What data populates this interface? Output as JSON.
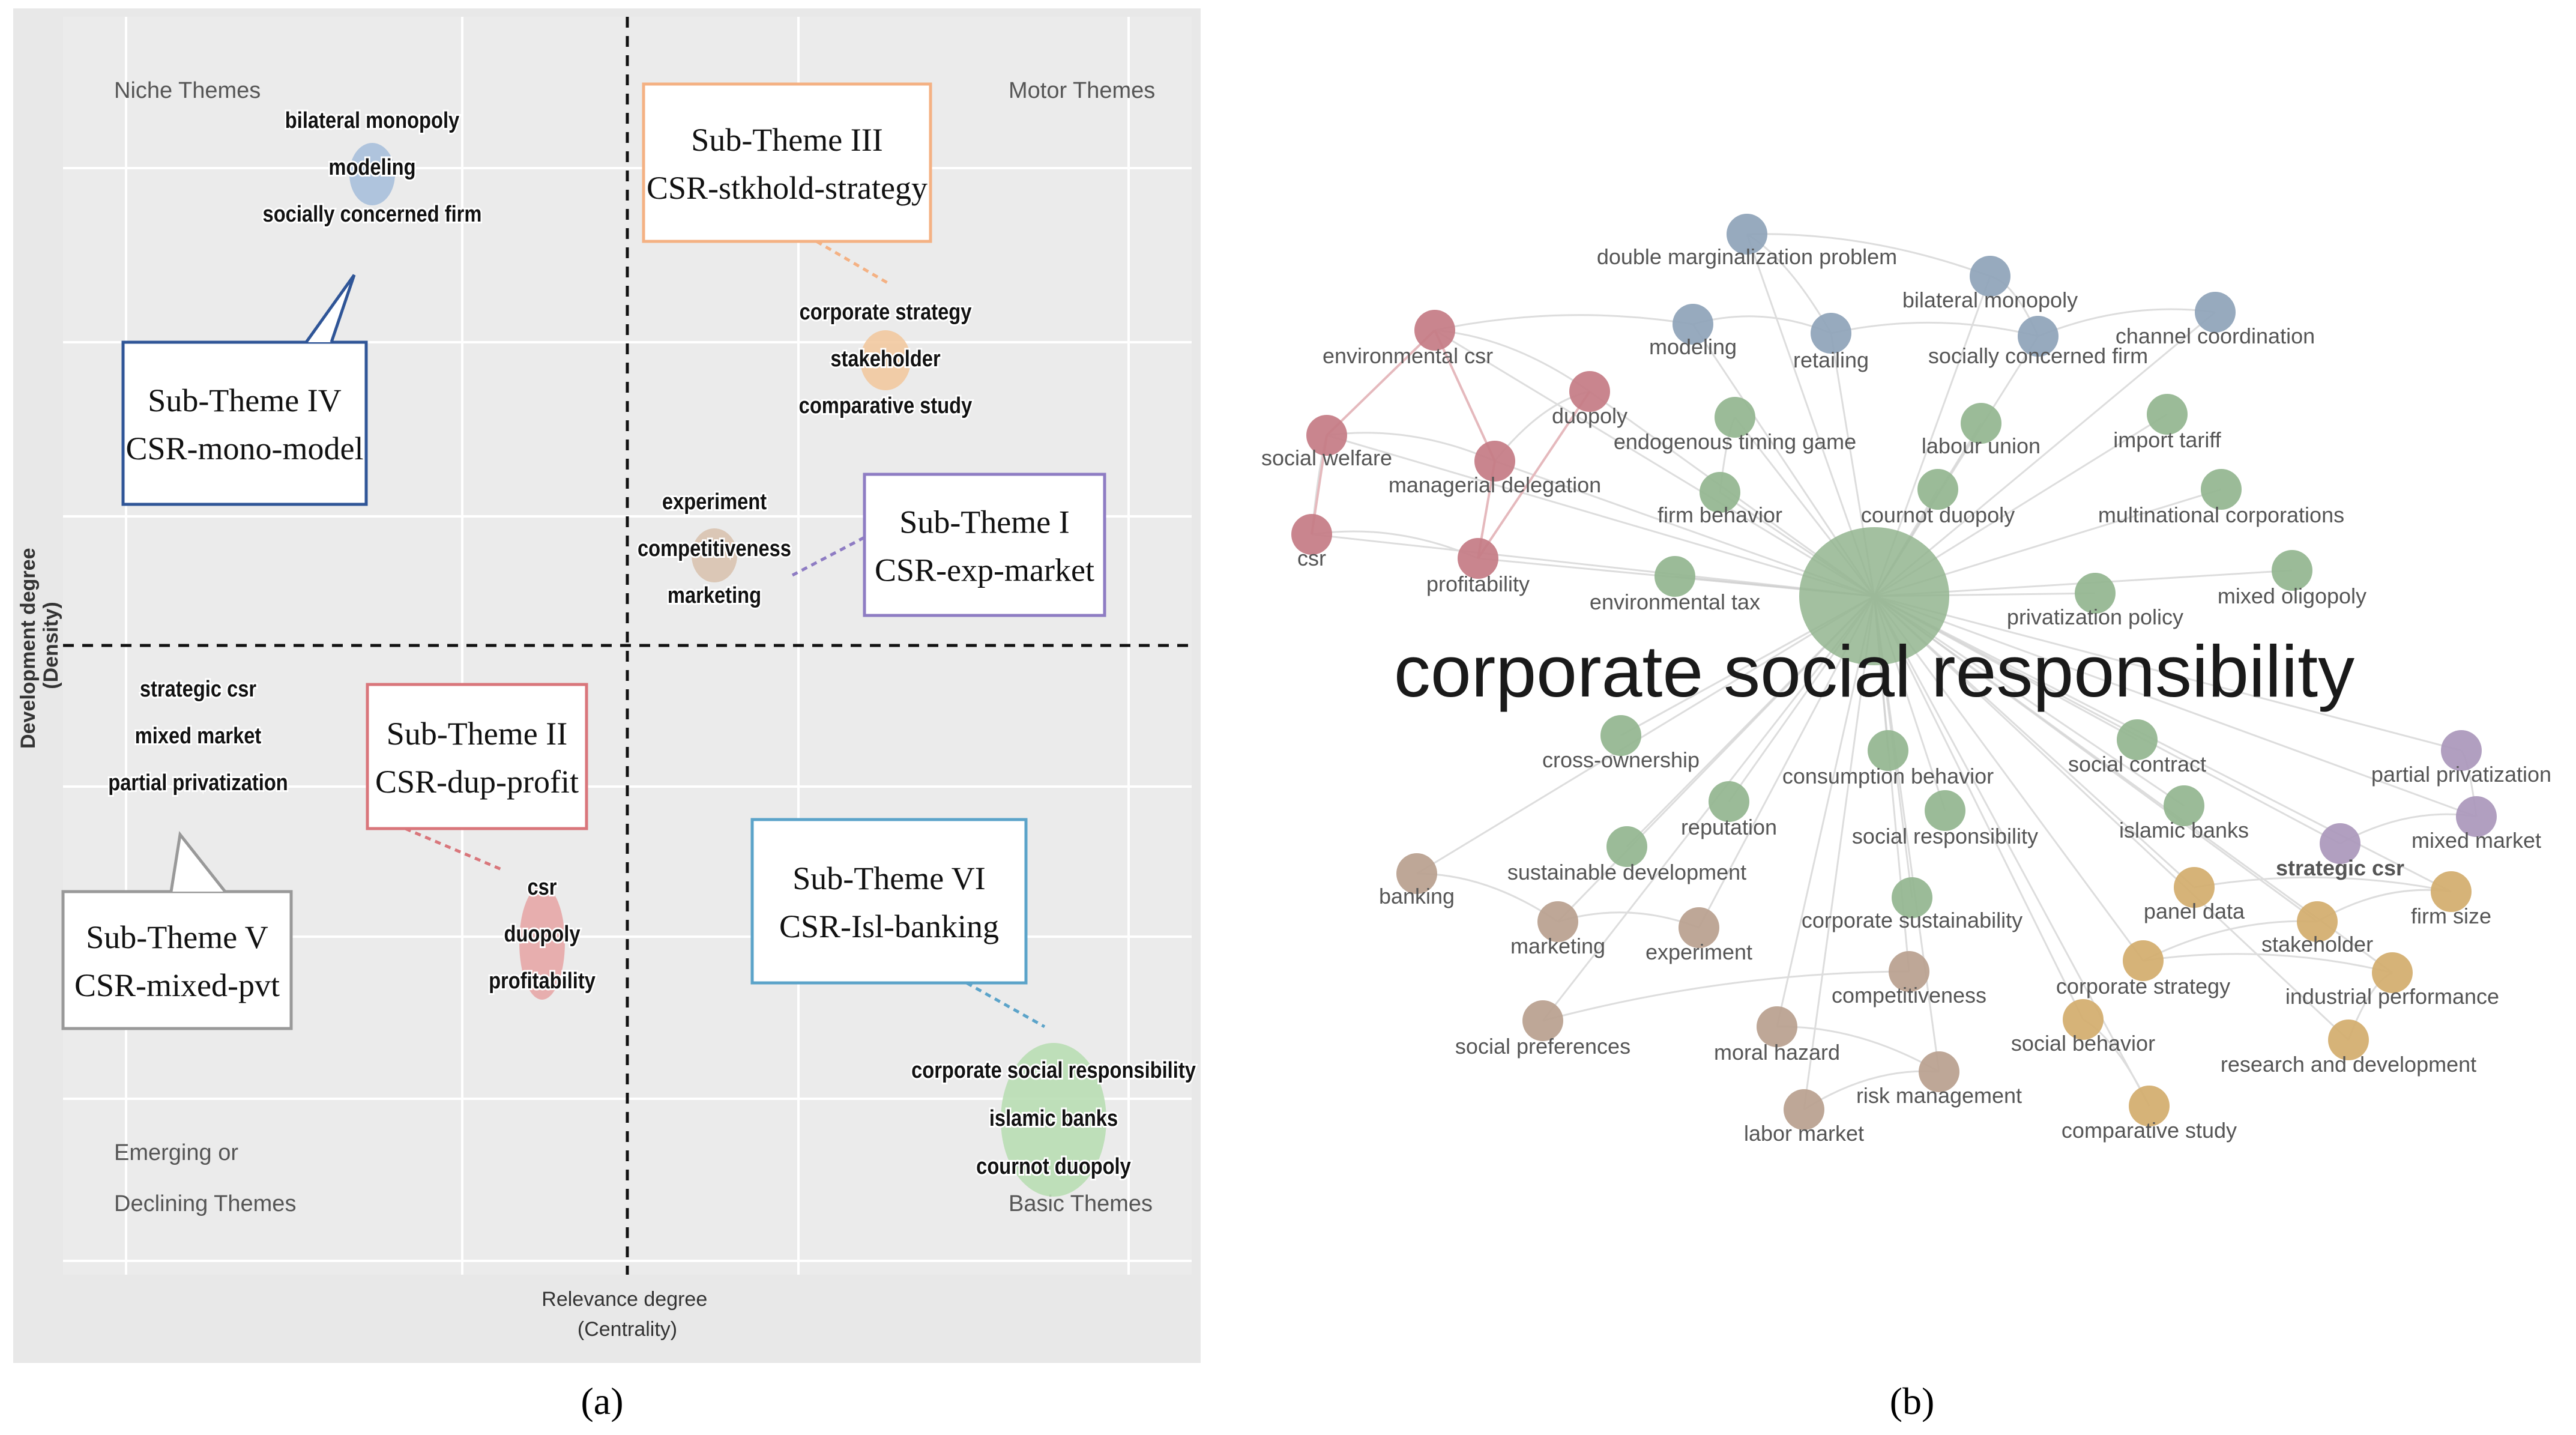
{
  "panel_a": {
    "caption": "(a)",
    "quadrants": {
      "niche": [
        "Niche Themes"
      ],
      "motor": [
        "Motor Themes"
      ],
      "emerging": [
        "Emerging or",
        "Declining Themes"
      ],
      "basic": [
        "Basic Themes"
      ]
    },
    "y_axis_label": [
      "Development degree",
      "(Density)"
    ],
    "x_axis_label": [
      "Relevance degree",
      "(Centrality)"
    ],
    "clusters": [
      {
        "key": "c1",
        "color": "#a9c0dc",
        "words": [
          "bilateral monopoly",
          "modeling",
          "socially concerned firm"
        ]
      },
      {
        "key": "c2",
        "color": "#f2c9a0",
        "words": [
          "corporate strategy",
          "stakeholder",
          "comparative study"
        ]
      },
      {
        "key": "c3",
        "color": "#d9c3b0",
        "words": [
          "experiment",
          "competitiveness",
          "marketing"
        ]
      },
      {
        "key": "c4",
        "color": "#e0e0e0",
        "words": [
          "strategic csr",
          "mixed market",
          "partial privatization"
        ]
      },
      {
        "key": "c5",
        "color": "#e7a7a7",
        "words": [
          "csr",
          "duopoly",
          "profitability"
        ]
      },
      {
        "key": "c6",
        "color": "#b9deb4",
        "words": [
          "corporate social responsibility",
          "islamic banks",
          "cournot duopoly"
        ]
      }
    ],
    "callouts": [
      {
        "key": "t4",
        "lines": [
          "Sub-Theme IV",
          "CSR-mono-model"
        ],
        "color": "#2f5597"
      },
      {
        "key": "t3",
        "lines": [
          "Sub-Theme III",
          "CSR-stkhold-strategy"
        ],
        "color": "#f4b183"
      },
      {
        "key": "t1",
        "lines": [
          "Sub-Theme I",
          "CSR-exp-market"
        ],
        "color": "#8e7cc3"
      },
      {
        "key": "t2",
        "lines": [
          "Sub-Theme II",
          "CSR-dup-profit"
        ],
        "color": "#d9767b"
      },
      {
        "key": "t6",
        "lines": [
          "Sub-Theme VI",
          "CSR-Isl-banking"
        ],
        "color": "#5ba3c9"
      },
      {
        "key": "t5",
        "lines": [
          "Sub-Theme V",
          "CSR-mixed-pvt"
        ],
        "color": "#999999"
      }
    ]
  },
  "panel_b": {
    "caption": "(b)",
    "center_label": "corporate social responsibility",
    "colors": {
      "blue": "#8ea3b8",
      "red": "#c47b84",
      "green": "#93b58f",
      "brown": "#b9a08e",
      "gold": "#d3ac6c",
      "purple": "#aa97bb"
    },
    "nodes": [
      {
        "label": "double marginalization problem",
        "group": "blue"
      },
      {
        "label": "bilateral monopoly",
        "group": "blue"
      },
      {
        "label": "modeling",
        "group": "blue"
      },
      {
        "label": "retailing",
        "group": "blue"
      },
      {
        "label": "socially concerned firm",
        "group": "blue"
      },
      {
        "label": "channel coordination",
        "group": "blue"
      },
      {
        "label": "environmental csr",
        "group": "red"
      },
      {
        "label": "duopoly",
        "group": "red"
      },
      {
        "label": "social welfare",
        "group": "red"
      },
      {
        "label": "managerial delegation",
        "group": "red"
      },
      {
        "label": "csr",
        "group": "red"
      },
      {
        "label": "profitability",
        "group": "red"
      },
      {
        "label": "endogenous timing game",
        "group": "green"
      },
      {
        "label": "labour union",
        "group": "green"
      },
      {
        "label": "import tariff",
        "group": "green"
      },
      {
        "label": "firm behavior",
        "group": "green"
      },
      {
        "label": "cournot duopoly",
        "group": "green"
      },
      {
        "label": "multinational corporations",
        "group": "green"
      },
      {
        "label": "environmental tax",
        "group": "green"
      },
      {
        "label": "privatization policy",
        "group": "green"
      },
      {
        "label": "mixed oligopoly",
        "group": "green"
      },
      {
        "label": "cross-ownership",
        "group": "green"
      },
      {
        "label": "consumption behavior",
        "group": "green"
      },
      {
        "label": "social contract",
        "group": "green"
      },
      {
        "label": "reputation",
        "group": "green"
      },
      {
        "label": "social responsibility",
        "group": "green"
      },
      {
        "label": "islamic banks",
        "group": "green"
      },
      {
        "label": "sustainable development",
        "group": "green"
      },
      {
        "label": "corporate sustainability",
        "group": "green"
      },
      {
        "label": "partial privatization",
        "group": "purple"
      },
      {
        "label": "mixed market",
        "group": "purple"
      },
      {
        "label": "strategic csr",
        "group": "purple"
      },
      {
        "label": "banking",
        "group": "brown"
      },
      {
        "label": "marketing",
        "group": "brown"
      },
      {
        "label": "experiment",
        "group": "brown"
      },
      {
        "label": "competitiveness",
        "group": "brown"
      },
      {
        "label": "social preferences",
        "group": "brown"
      },
      {
        "label": "moral hazard",
        "group": "brown"
      },
      {
        "label": "risk management",
        "group": "brown"
      },
      {
        "label": "labor market",
        "group": "brown"
      },
      {
        "label": "panel data",
        "group": "gold"
      },
      {
        "label": "firm size",
        "group": "gold"
      },
      {
        "label": "stakeholder",
        "group": "gold"
      },
      {
        "label": "corporate strategy",
        "group": "gold"
      },
      {
        "label": "industrial performance",
        "group": "gold"
      },
      {
        "label": "social behavior",
        "group": "gold"
      },
      {
        "label": "research and development",
        "group": "gold"
      },
      {
        "label": "comparative study",
        "group": "gold"
      }
    ]
  }
}
